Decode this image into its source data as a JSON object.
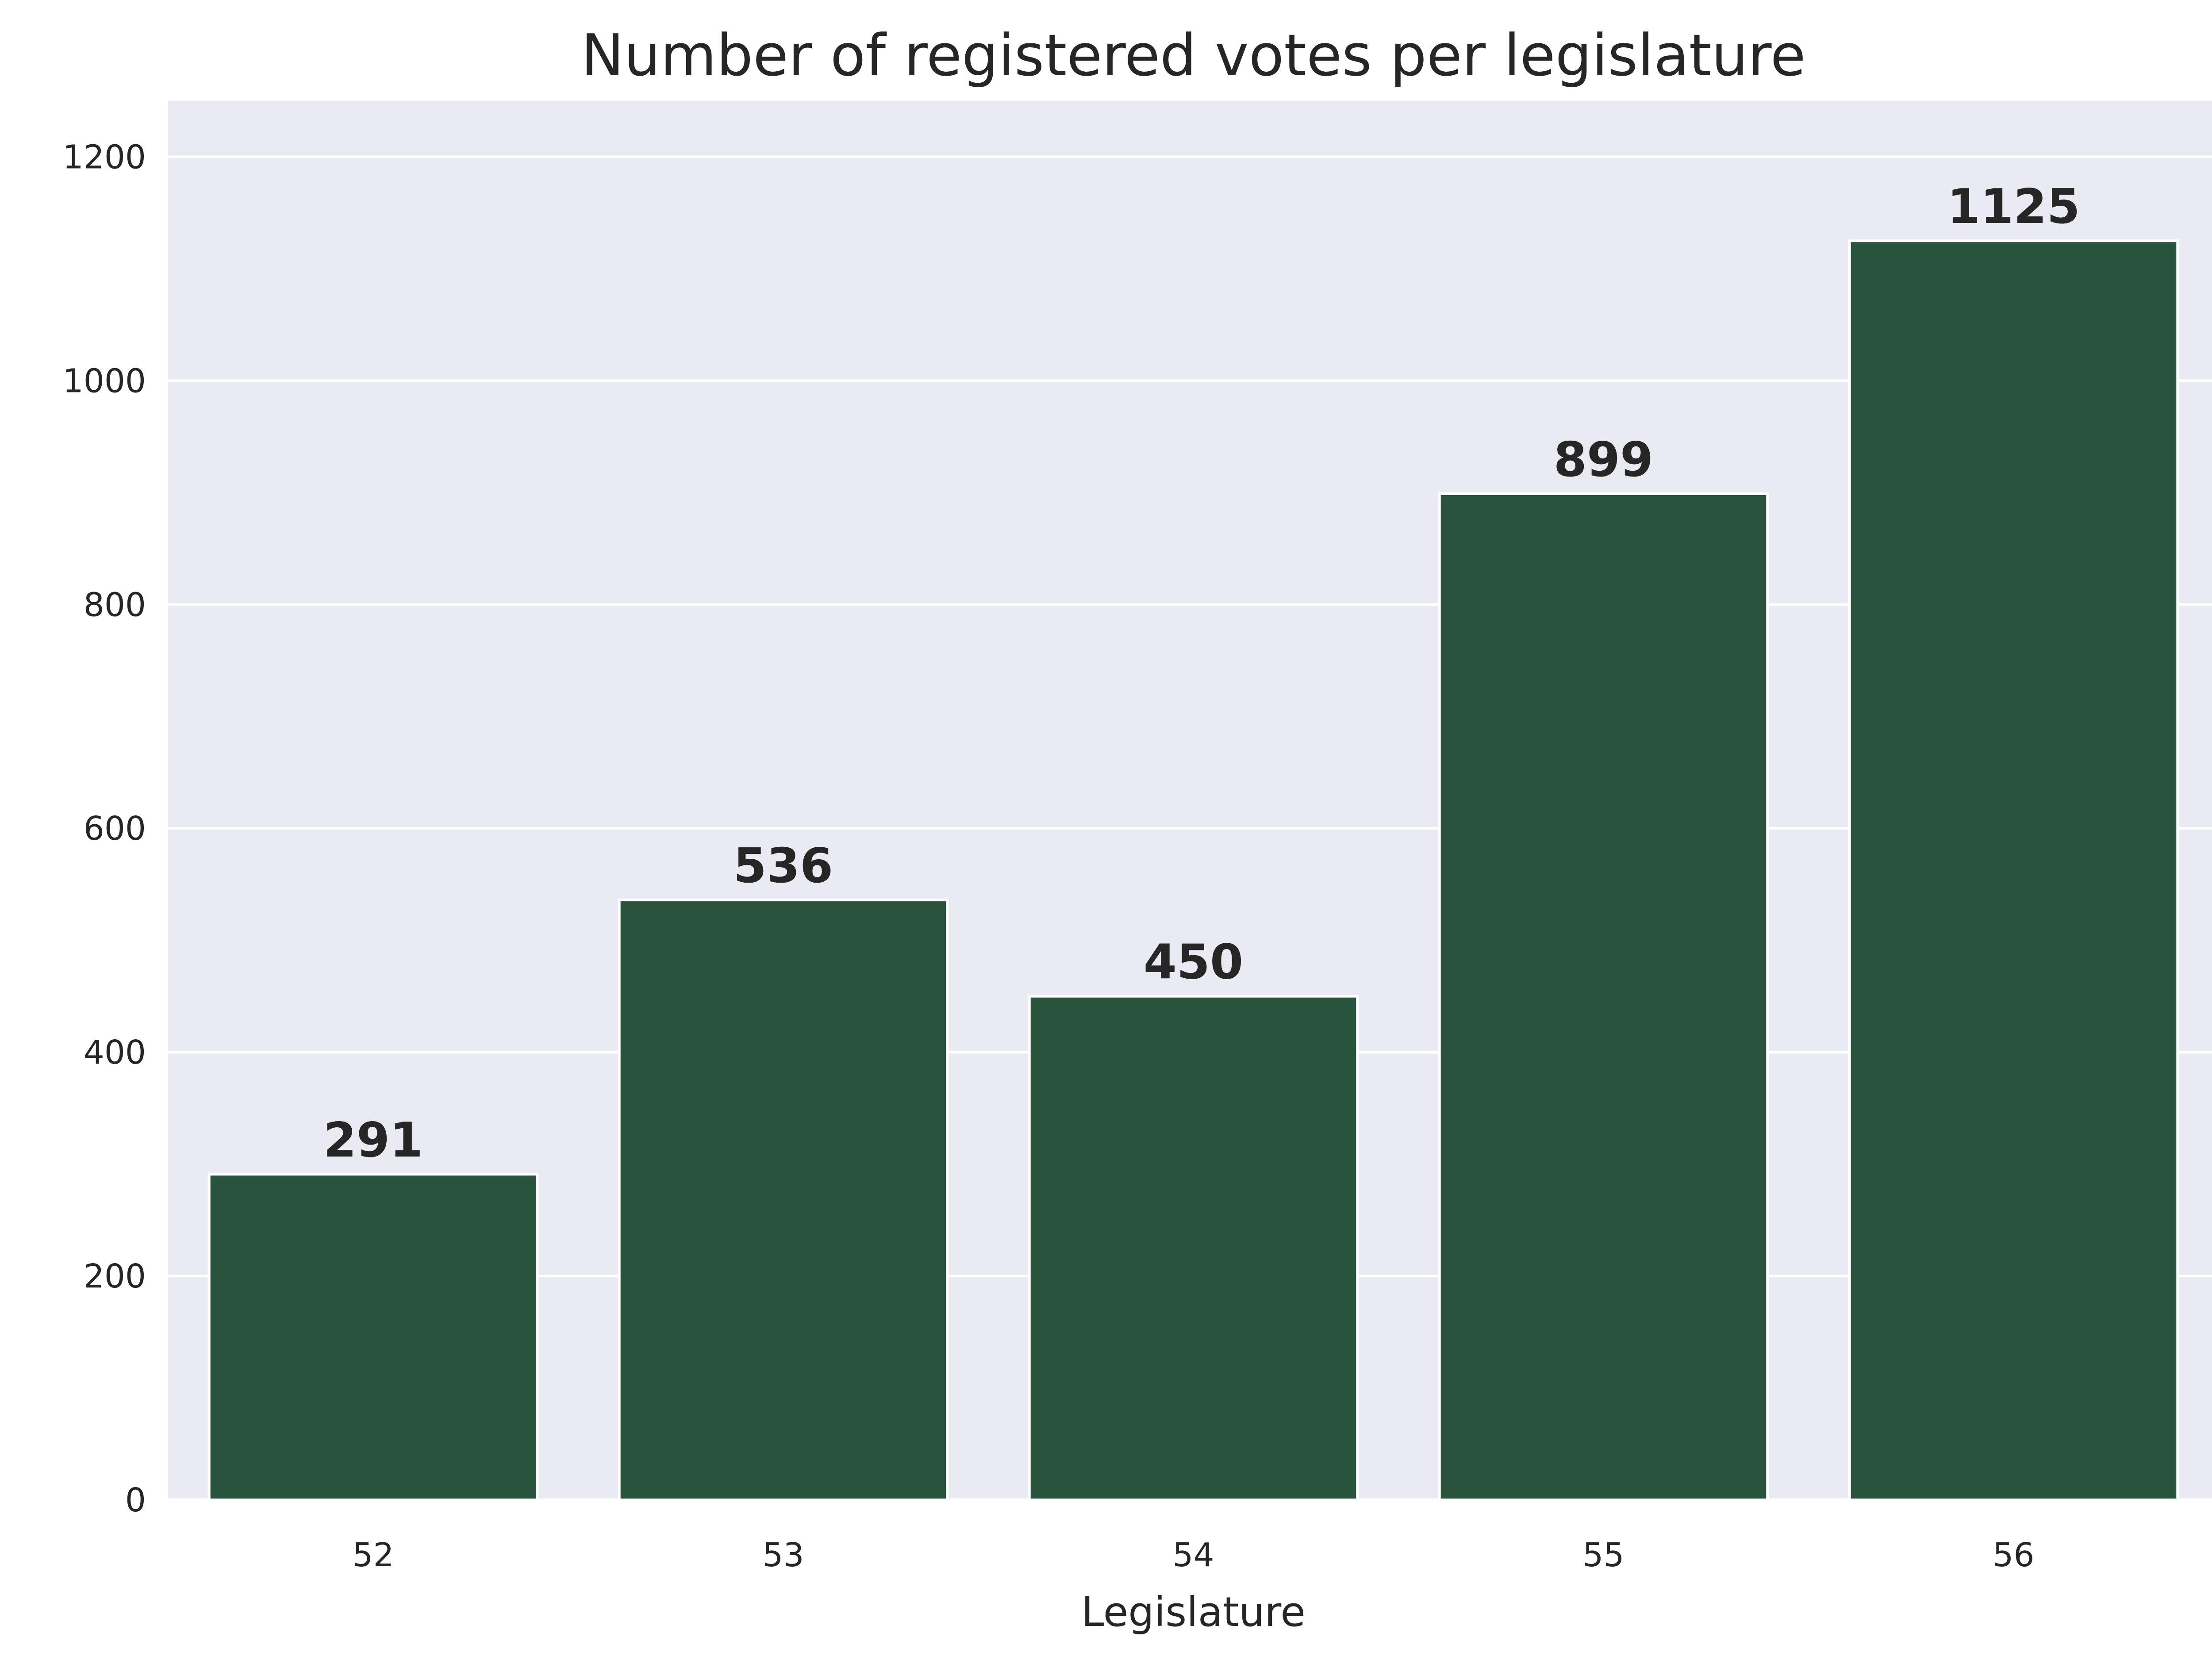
{
  "chart_data": {
    "type": "bar",
    "title": "Number of registered votes per legislature",
    "xlabel": "Legislature",
    "ylabel": "",
    "categories": [
      "52",
      "53",
      "54",
      "55",
      "56"
    ],
    "values": [
      291,
      536,
      450,
      899,
      1125
    ],
    "data_labels": [
      "291",
      "536",
      "450",
      "899",
      "1125"
    ],
    "ylim": [
      0,
      1250
    ],
    "yticks": [
      0,
      200,
      400,
      600,
      800,
      1000,
      1200
    ],
    "grid": true,
    "legend": "none",
    "colors": {
      "bar": "#29533d",
      "bar_edge": "#ffffff",
      "plot_background": "#eaeaf2",
      "grid": "#ffffff",
      "text": "#262626"
    }
  }
}
